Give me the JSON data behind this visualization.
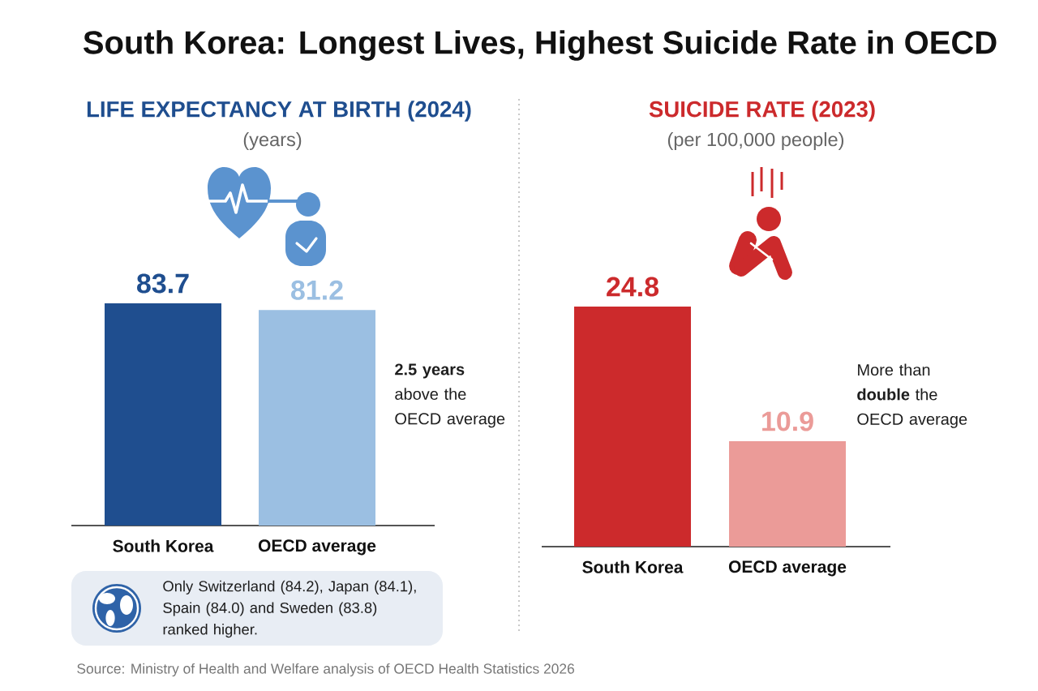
{
  "chart_data": [
    {
      "type": "other",
      "title": "South Korea: Longest Lives, Highest Suicide Rate in OECD",
      "annotations": [
        "Source: Ministry of Health and Welfare analysis of OECD Health Statistics 2026"
      ]
    },
    {
      "type": "bar",
      "title": "LIFE EXPECTANCY AT BIRTH (2024)",
      "subtitle": "(years)",
      "categories": [
        "South Korea",
        "OECD average"
      ],
      "values": [
        83.7,
        81.2
      ],
      "colors": [
        "#1f4e8f",
        "#9bbfe2"
      ],
      "data_labels": true,
      "tick_labels": "x",
      "annotations": [
        "**2.5 years** above the OECD average",
        "Only Switzerland (84.2), Japan (84.1), Spain (84.0) and Sweden (83.8) ranked higher."
      ]
    },
    {
      "type": "bar",
      "title": "SUICIDE RATE (2023)",
      "subtitle": "(per 100,000 people)",
      "categories": [
        "South Korea",
        "OECD average"
      ],
      "values": [
        24.8,
        10.9
      ],
      "colors": [
        "#cc2a2c",
        "#eb9b98"
      ],
      "data_labels": true,
      "tick_labels": "x",
      "annotations": [
        "More than **double** the OECD average"
      ]
    }
  ]
}
